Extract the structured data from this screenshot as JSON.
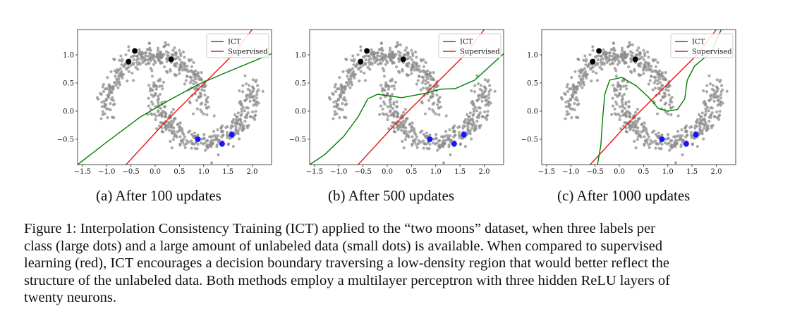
{
  "figure": {
    "subcaptions": [
      "(a) After 100 updates",
      "(b) After 500 updates",
      "(c) After 1000 updates"
    ],
    "caption_lines": [
      "Figure 1: Interpolation Consistency Training (ICT) applied to the “two moons” dataset, when three labels per",
      "class (large dots) and a large amount of unlabeled data (small dots) is available. When compared to supervised",
      "learning (red), ICT encourages a decision boundary traversing a low-density region that would better reflect the",
      "structure of the unlabeled data. Both methods employ a multilayer perceptron with three hidden ReLU layers of",
      "twenty neurons."
    ]
  },
  "colors": {
    "ict": "#007f00",
    "supervised": "#ee1111",
    "unlabeled": "#8c8c8c",
    "class0": "#000000",
    "class1": "#1414ff"
  },
  "chart_data": [
    {
      "type": "scatter",
      "title": "(a) After 100 updates",
      "xlim": [
        -1.6,
        2.4
      ],
      "ylim": [
        -0.95,
        1.45
      ],
      "xticks": [
        -1.5,
        -1.0,
        -0.5,
        0.0,
        0.5,
        1.0,
        1.5,
        2.0
      ],
      "yticks": [
        -0.5,
        0.0,
        0.5,
        1.0
      ],
      "xtick_labels": [
        "−1.5",
        "−1.0",
        "−0.5",
        "0.0",
        "0.5",
        "1.0",
        "1.5",
        "2.0"
      ],
      "ytick_labels": [
        "−0.5",
        "0.0",
        "0.5",
        "1.0"
      ],
      "legend": [
        "ICT",
        "Supervised"
      ],
      "labeled_class0": [
        [
          -0.55,
          0.88
        ],
        [
          -0.42,
          1.07
        ],
        [
          0.33,
          0.92
        ]
      ],
      "labeled_class1": [
        [
          0.88,
          -0.5
        ],
        [
          1.38,
          -0.58
        ],
        [
          1.58,
          -0.42
        ]
      ],
      "ict_boundary": [
        [
          -1.6,
          -0.95
        ],
        [
          -1.0,
          -0.55
        ],
        [
          -0.3,
          -0.1
        ],
        [
          0.3,
          0.2
        ],
        [
          0.9,
          0.48
        ],
        [
          1.5,
          0.7
        ],
        [
          2.4,
          1.02
        ]
      ],
      "supervised_boundary": [
        [
          -0.6,
          -0.95
        ],
        [
          0.2,
          -0.2
        ],
        [
          0.9,
          0.4
        ],
        [
          1.6,
          1.0
        ],
        [
          2.0,
          1.45
        ]
      ]
    },
    {
      "type": "scatter",
      "title": "(b) After 500 updates",
      "xlim": [
        -1.6,
        2.4
      ],
      "ylim": [
        -0.95,
        1.45
      ],
      "xticks": [
        -1.5,
        -1.0,
        -0.5,
        0.0,
        0.5,
        1.0,
        1.5,
        2.0
      ],
      "yticks": [
        -0.5,
        0.0,
        0.5,
        1.0
      ],
      "xtick_labels": [
        "−1.5",
        "−1.0",
        "−0.5",
        "0.0",
        "0.5",
        "1.0",
        "1.5",
        "2.0"
      ],
      "ytick_labels": [
        "−0.5",
        "0.0",
        "0.5",
        "1.0"
      ],
      "legend": [
        "ICT",
        "Supervised"
      ],
      "labeled_class0": [
        [
          -0.55,
          0.88
        ],
        [
          -0.42,
          1.07
        ],
        [
          0.33,
          0.92
        ]
      ],
      "labeled_class1": [
        [
          0.88,
          -0.5
        ],
        [
          1.38,
          -0.58
        ],
        [
          1.58,
          -0.42
        ]
      ],
      "ict_boundary": [
        [
          -1.6,
          -0.95
        ],
        [
          -1.3,
          -0.78
        ],
        [
          -0.9,
          -0.45
        ],
        [
          -0.6,
          -0.1
        ],
        [
          -0.4,
          0.22
        ],
        [
          -0.2,
          0.3
        ],
        [
          0.3,
          0.24
        ],
        [
          0.8,
          0.32
        ],
        [
          1.1,
          0.39
        ],
        [
          1.4,
          0.4
        ],
        [
          1.8,
          0.55
        ],
        [
          2.4,
          1.02
        ]
      ],
      "supervised_boundary": [
        [
          -0.6,
          -0.95
        ],
        [
          0.2,
          -0.2
        ],
        [
          0.9,
          0.4
        ],
        [
          1.6,
          1.0
        ],
        [
          2.0,
          1.45
        ]
      ]
    },
    {
      "type": "scatter",
      "title": "(c) After 1000 updates",
      "xlim": [
        -1.6,
        2.4
      ],
      "ylim": [
        -0.95,
        1.45
      ],
      "xticks": [
        -1.5,
        -1.0,
        -0.5,
        0.0,
        0.5,
        1.0,
        1.5,
        2.0
      ],
      "yticks": [
        -0.5,
        0.0,
        0.5,
        1.0
      ],
      "xtick_labels": [
        "−1.5",
        "−1.0",
        "−0.5",
        "0.0",
        "0.5",
        "1.0",
        "1.5",
        "2.0"
      ],
      "ytick_labels": [
        "−0.5",
        "0.0",
        "0.5",
        "1.0"
      ],
      "legend": [
        "ICT",
        "Supervised"
      ],
      "labeled_class0": [
        [
          -0.55,
          0.88
        ],
        [
          -0.42,
          1.07
        ],
        [
          0.33,
          0.92
        ]
      ],
      "labeled_class1": [
        [
          0.88,
          -0.5
        ],
        [
          1.38,
          -0.58
        ],
        [
          1.58,
          -0.42
        ]
      ],
      "ict_boundary": [
        [
          -0.45,
          -0.95
        ],
        [
          -0.38,
          -0.6
        ],
        [
          -0.35,
          -0.2
        ],
        [
          -0.3,
          0.3
        ],
        [
          -0.2,
          0.55
        ],
        [
          0.05,
          0.6
        ],
        [
          0.35,
          0.45
        ],
        [
          0.6,
          0.25
        ],
        [
          0.8,
          0.05
        ],
        [
          1.0,
          0.0
        ],
        [
          1.2,
          0.03
        ],
        [
          1.35,
          0.22
        ],
        [
          1.4,
          0.55
        ],
        [
          1.55,
          0.8
        ],
        [
          1.9,
          1.05
        ],
        [
          2.1,
          1.45
        ]
      ],
      "supervised_boundary": [
        [
          -0.6,
          -0.95
        ],
        [
          0.2,
          -0.2
        ],
        [
          0.9,
          0.4
        ],
        [
          1.6,
          1.0
        ],
        [
          2.0,
          1.45
        ]
      ]
    }
  ]
}
